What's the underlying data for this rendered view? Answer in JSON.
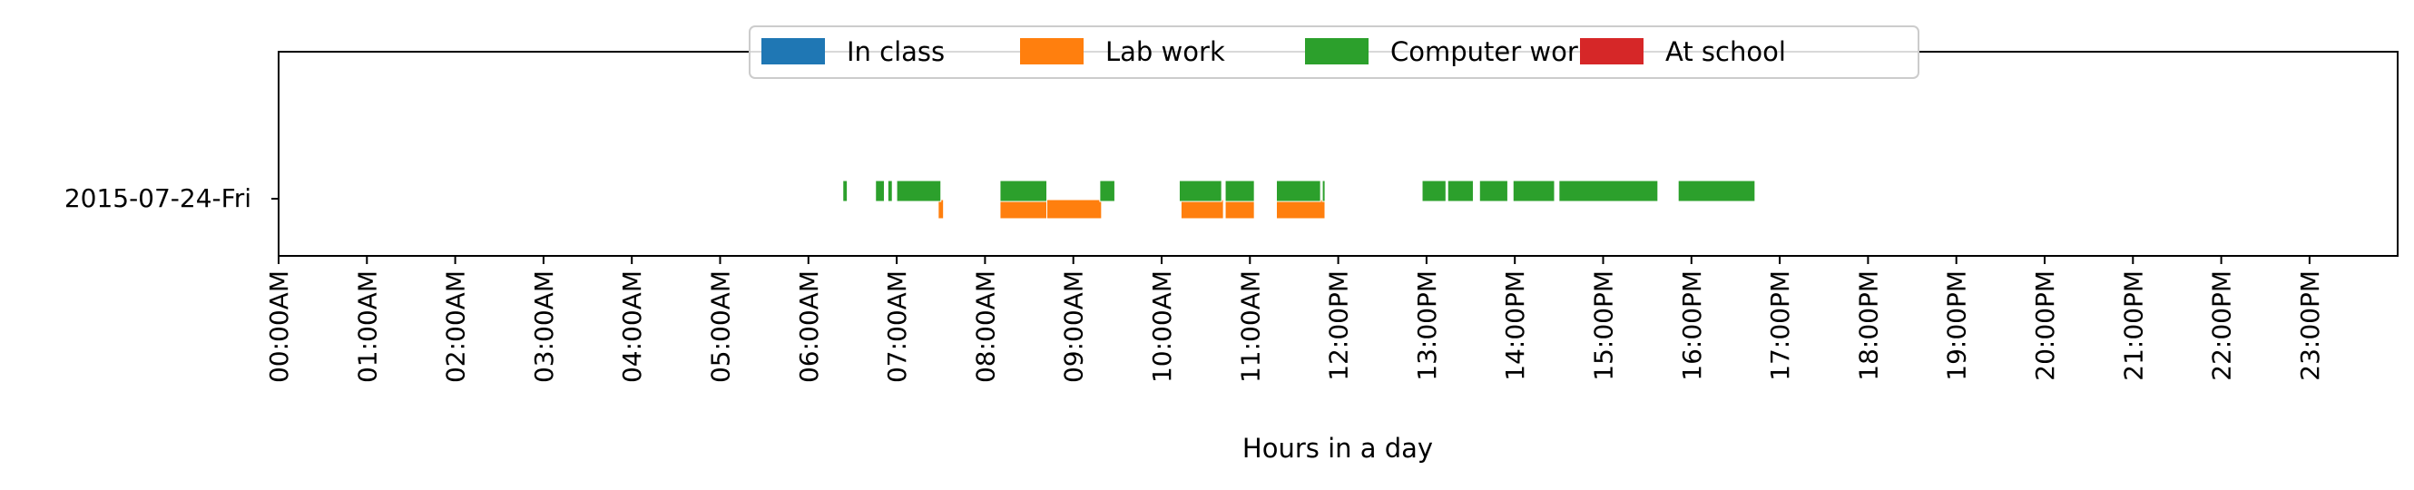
{
  "chart_data": {
    "type": "timeline",
    "title": "",
    "xlabel": "Hours in a day",
    "ylabel": "",
    "xlim": [
      0,
      24
    ],
    "rows": [
      "2015-07-24-Fri"
    ],
    "x_ticks": [
      {
        "value": 0,
        "label": "00:00AM"
      },
      {
        "value": 1,
        "label": "01:00AM"
      },
      {
        "value": 2,
        "label": "02:00AM"
      },
      {
        "value": 3,
        "label": "03:00AM"
      },
      {
        "value": 4,
        "label": "04:00AM"
      },
      {
        "value": 5,
        "label": "05:00AM"
      },
      {
        "value": 6,
        "label": "06:00AM"
      },
      {
        "value": 7,
        "label": "07:00AM"
      },
      {
        "value": 8,
        "label": "08:00AM"
      },
      {
        "value": 9,
        "label": "09:00AM"
      },
      {
        "value": 10,
        "label": "10:00AM"
      },
      {
        "value": 11,
        "label": "11:00AM"
      },
      {
        "value": 12,
        "label": "12:00PM"
      },
      {
        "value": 13,
        "label": "13:00PM"
      },
      {
        "value": 14,
        "label": "14:00PM"
      },
      {
        "value": 15,
        "label": "15:00PM"
      },
      {
        "value": 16,
        "label": "16:00PM"
      },
      {
        "value": 17,
        "label": "17:00PM"
      },
      {
        "value": 18,
        "label": "18:00PM"
      },
      {
        "value": 19,
        "label": "19:00PM"
      },
      {
        "value": 20,
        "label": "20:00PM"
      },
      {
        "value": 21,
        "label": "21:00PM"
      },
      {
        "value": 22,
        "label": "22:00PM"
      },
      {
        "value": 23,
        "label": "23:00PM"
      }
    ],
    "legend_position": "top-center",
    "series": [
      {
        "name": "In class",
        "color": "#1f77b4",
        "intervals": []
      },
      {
        "name": "Lab work",
        "color": "#ff7f0e",
        "intervals": [
          [
            7.47,
            7.53
          ],
          [
            8.17,
            8.7
          ],
          [
            8.7,
            9.32
          ],
          [
            10.22,
            10.7
          ],
          [
            10.72,
            11.05
          ],
          [
            11.3,
            11.85
          ]
        ]
      },
      {
        "name": "Computer work",
        "color": "#2ca02c",
        "intervals": [
          [
            6.39,
            6.44
          ],
          [
            6.76,
            6.86
          ],
          [
            6.9,
            6.95
          ],
          [
            7.0,
            7.5
          ],
          [
            8.17,
            8.7
          ],
          [
            9.3,
            9.47
          ],
          [
            10.2,
            10.68
          ],
          [
            10.72,
            11.05
          ],
          [
            11.3,
            11.8
          ],
          [
            11.82,
            11.85
          ],
          [
            12.95,
            13.22
          ],
          [
            13.24,
            13.53
          ],
          [
            13.6,
            13.92
          ],
          [
            13.98,
            14.45
          ],
          [
            14.5,
            15.62
          ],
          [
            15.85,
            16.72
          ]
        ]
      },
      {
        "name": "At school",
        "color": "#d62728",
        "intervals": []
      }
    ]
  }
}
